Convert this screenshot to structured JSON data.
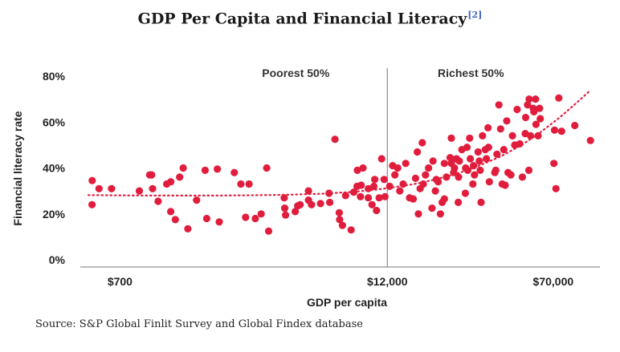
{
  "title": "GDP Per Capita and Financial Literacy",
  "title_ref": "[2]",
  "source": "Source: S&P Global Finlit Survey and Global Findex database",
  "colors": {
    "points": "#e11d3d",
    "trend": "#e11d3d",
    "axis": "#777777",
    "divider": "#8a8a8a",
    "ref_link": "#3f62c9"
  },
  "chart_data": {
    "type": "scatter",
    "xlabel": "GDP per capita",
    "ylabel": "Financial literacy rate",
    "x_scale": "log",
    "xlim": [
      500,
      120000
    ],
    "ylim": [
      0,
      80
    ],
    "x_ticks": [
      {
        "value": 700,
        "label": "$700"
      },
      {
        "value": 12000,
        "label": "$12,000"
      },
      {
        "value": 70000,
        "label": "$70,000"
      }
    ],
    "y_ticks": [
      {
        "value": 0,
        "label": "0%"
      },
      {
        "value": 20,
        "label": "20%"
      },
      {
        "value": 40,
        "label": "40%"
      },
      {
        "value": 60,
        "label": "60%"
      },
      {
        "value": 80,
        "label": "80%"
      }
    ],
    "divider_x": 12000,
    "regions": [
      {
        "label": "Poorest 50%",
        "side": "left"
      },
      {
        "label": "Richest 50%",
        "side": "right"
      }
    ],
    "trend": [
      [
        500,
        28.2
      ],
      [
        1000,
        28.0
      ],
      [
        2000,
        28.0
      ],
      [
        4000,
        28.3
      ],
      [
        6000,
        28.8
      ],
      [
        8000,
        29.5
      ],
      [
        10000,
        30.3
      ],
      [
        12000,
        31.2
      ],
      [
        16000,
        33.0
      ],
      [
        20000,
        35.0
      ],
      [
        25000,
        37.5
      ],
      [
        30000,
        40.0
      ],
      [
        40000,
        45.0
      ],
      [
        50000,
        50.0
      ],
      [
        60000,
        55.0
      ],
      [
        75000,
        62.0
      ],
      [
        90000,
        68.5
      ],
      [
        103000,
        73.5
      ]
    ],
    "points": [
      [
        521,
        34.5
      ],
      [
        520,
        24
      ],
      [
        560,
        31
      ],
      [
        640,
        31
      ],
      [
        860,
        30
      ],
      [
        960,
        37
      ],
      [
        980,
        37
      ],
      [
        990,
        31
      ],
      [
        1050,
        25.5
      ],
      [
        1150,
        33
      ],
      [
        1200,
        21
      ],
      [
        1200,
        34
      ],
      [
        1260,
        17.5
      ],
      [
        1370,
        40
      ],
      [
        1320,
        36
      ],
      [
        1440,
        13.5
      ],
      [
        1580,
        26
      ],
      [
        1730,
        39
      ],
      [
        1760,
        18
      ],
      [
        1970,
        39.5
      ],
      [
        2010,
        16.5
      ],
      [
        2360,
        38
      ],
      [
        2530,
        33
      ],
      [
        2660,
        18.5
      ],
      [
        2760,
        33
      ],
      [
        2950,
        18
      ],
      [
        3140,
        20
      ],
      [
        3330,
        40
      ],
      [
        3400,
        12.5
      ],
      [
        4010,
        27
      ],
      [
        4030,
        22.5
      ],
      [
        4070,
        19.5
      ],
      [
        4510,
        21
      ],
      [
        4630,
        23.5
      ],
      [
        4750,
        24
      ],
      [
        5190,
        26
      ],
      [
        5190,
        30
      ],
      [
        5360,
        24
      ],
      [
        5900,
        24.5
      ],
      [
        6460,
        29
      ],
      [
        6510,
        25
      ],
      [
        6880,
        52.5
      ],
      [
        7200,
        20.5
      ],
      [
        7230,
        17.5
      ],
      [
        7450,
        15
      ],
      [
        7700,
        28
      ],
      [
        8170,
        13
      ],
      [
        8400,
        29.5
      ],
      [
        8700,
        32
      ],
      [
        8730,
        39
      ],
      [
        9020,
        27.5
      ],
      [
        9090,
        32.5
      ],
      [
        9270,
        40
      ],
      [
        9800,
        27
      ],
      [
        9800,
        31
      ],
      [
        10200,
        24
      ],
      [
        10400,
        32
      ],
      [
        10500,
        35
      ],
      [
        10700,
        21.5
      ],
      [
        11000,
        27
      ],
      [
        11300,
        44
      ],
      [
        11600,
        35
      ],
      [
        11700,
        27.5
      ],
      [
        12300,
        32
      ],
      [
        12700,
        41
      ],
      [
        13000,
        37
      ],
      [
        13400,
        40
      ],
      [
        13700,
        30
      ],
      [
        14200,
        33
      ],
      [
        14600,
        42
      ],
      [
        15200,
        27
      ],
      [
        15800,
        26.5
      ],
      [
        16200,
        35.5
      ],
      [
        16500,
        47
      ],
      [
        16700,
        20
      ],
      [
        17000,
        31
      ],
      [
        17400,
        51
      ],
      [
        17600,
        33
      ],
      [
        18000,
        37
      ],
      [
        18600,
        40
      ],
      [
        19300,
        22.5
      ],
      [
        19500,
        43
      ],
      [
        20000,
        30
      ],
      [
        20200,
        35
      ],
      [
        20600,
        34
      ],
      [
        21100,
        20
      ],
      [
        21500,
        25
      ],
      [
        22000,
        26.5
      ],
      [
        22000,
        42
      ],
      [
        22500,
        36
      ],
      [
        23400,
        44.5
      ],
      [
        23700,
        53
      ],
      [
        23700,
        42
      ],
      [
        24300,
        38
      ],
      [
        24500,
        40
      ],
      [
        25000,
        44
      ],
      [
        25500,
        25
      ],
      [
        25600,
        36
      ],
      [
        25800,
        43
      ],
      [
        26500,
        48
      ],
      [
        27500,
        29
      ],
      [
        27600,
        40
      ],
      [
        28000,
        49
      ],
      [
        28200,
        39
      ],
      [
        28800,
        53
      ],
      [
        29000,
        44
      ],
      [
        29800,
        33
      ],
      [
        30000,
        41
      ],
      [
        30300,
        37
      ],
      [
        31500,
        47
      ],
      [
        31900,
        43
      ],
      [
        32200,
        39
      ],
      [
        32500,
        25
      ],
      [
        33000,
        54
      ],
      [
        34000,
        48
      ],
      [
        34400,
        44
      ],
      [
        35000,
        57.5
      ],
      [
        35200,
        49
      ],
      [
        35500,
        34
      ],
      [
        37600,
        38
      ],
      [
        38000,
        39
      ],
      [
        38500,
        46
      ],
      [
        39300,
        67.5
      ],
      [
        40000,
        57
      ],
      [
        40700,
        33
      ],
      [
        41400,
        48
      ],
      [
        42000,
        32.5
      ],
      [
        42700,
        60.5
      ],
      [
        43300,
        38
      ],
      [
        44600,
        37
      ],
      [
        45400,
        54
      ],
      [
        46500,
        50
      ],
      [
        47700,
        65.5
      ],
      [
        49000,
        50.5
      ],
      [
        50400,
        36
      ],
      [
        52000,
        55
      ],
      [
        52200,
        62
      ],
      [
        53300,
        67.5
      ],
      [
        54000,
        39
      ],
      [
        54200,
        70
      ],
      [
        55000,
        54
      ],
      [
        56600,
        66
      ],
      [
        57000,
        64.5
      ],
      [
        58000,
        70
      ],
      [
        58300,
        59
      ],
      [
        59600,
        54
      ],
      [
        61000,
        61.5
      ],
      [
        60500,
        66
      ],
      [
        70500,
        42
      ],
      [
        71000,
        56.5
      ],
      [
        72000,
        31
      ],
      [
        74300,
        70.5
      ],
      [
        76500,
        56
      ],
      [
        88000,
        58.5
      ],
      [
        104000,
        52
      ]
    ]
  }
}
